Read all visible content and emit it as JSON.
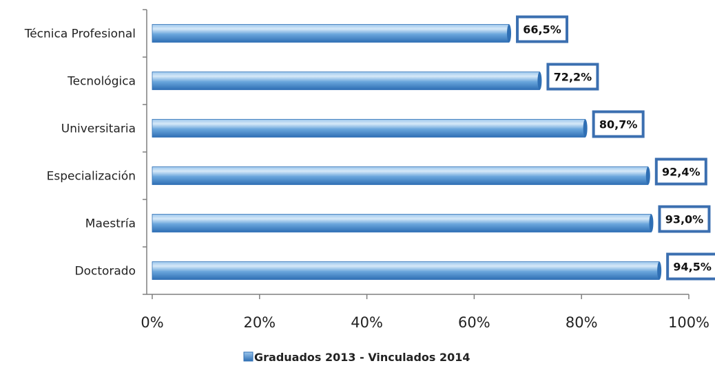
{
  "chart_data": {
    "type": "bar",
    "orientation": "horizontal",
    "categories": [
      "Técnica Profesional",
      "Tecnológica",
      "Universitaria",
      "Especialización",
      "Maestría",
      "Doctorado"
    ],
    "series": [
      {
        "name": "Graduados 2013 - Vinculados 2014",
        "values": [
          66.5,
          72.2,
          80.7,
          92.4,
          93.0,
          94.5
        ],
        "labels": [
          "66,5%",
          "72,2%",
          "80,7%",
          "92,4%",
          "93,0%",
          "94,5%"
        ]
      }
    ],
    "xlim": [
      0,
      100
    ],
    "xticks": [
      0,
      20,
      40,
      60,
      80,
      100
    ],
    "xtick_labels": [
      "0%",
      "20%",
      "40%",
      "60%",
      "80%",
      "100%"
    ],
    "grid": false,
    "legend_position": "bottom",
    "colors": {
      "bar": "#5b9bd5",
      "bar_dark": "#2f6fb4",
      "bar_light": "#bcd9f2",
      "label_border": "#3b6fb0",
      "axis": "#7f7f7f"
    }
  }
}
